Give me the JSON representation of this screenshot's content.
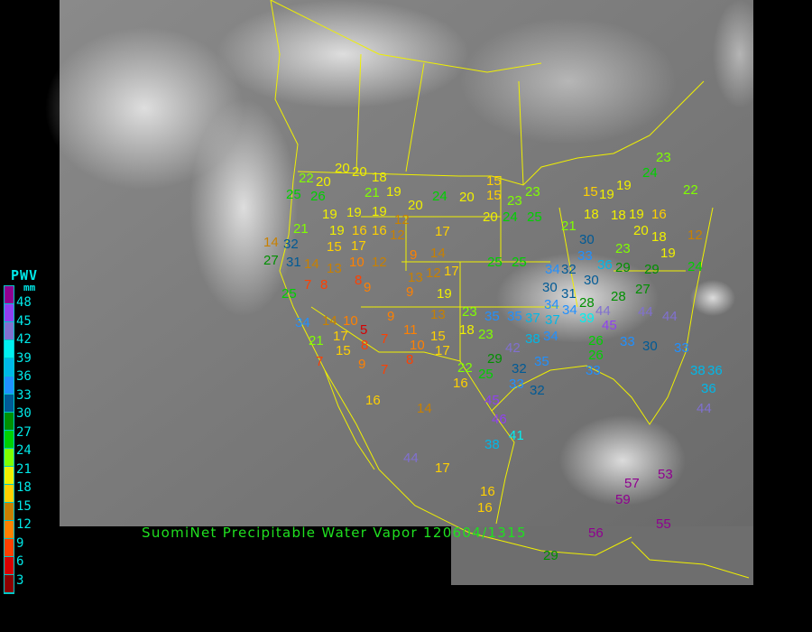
{
  "title": "SuomiNet Precipitable Water Vapor 120604/1315",
  "legend": {
    "title": "PWV",
    "unit": "mm",
    "labels": [
      "48",
      "45",
      "42",
      "39",
      "36",
      "33",
      "30",
      "27",
      "24",
      "21",
      "18",
      "15",
      "12",
      "9",
      "6",
      "3"
    ],
    "colors_top_to_bottom": [
      "#900090",
      "#9040f0",
      "#8070d0",
      "#00f0f0",
      "#00b8e8",
      "#2090ff",
      "#005a96",
      "#009000",
      "#00d000",
      "#80ff00",
      "#f0f000",
      "#ffd000",
      "#c88000",
      "#ff8000",
      "#ff4000",
      "#d80000",
      "#8b0000"
    ]
  },
  "colors": {
    "border_lines": "#f0f000",
    "title_text": "#20e020",
    "legend_text": "#00e8e8"
  },
  "stations": [
    20,
    20,
    18,
    22,
    20,
    25,
    26,
    21,
    19,
    20,
    24,
    20,
    15,
    15,
    20,
    24,
    25,
    23,
    23,
    19,
    19,
    19,
    12,
    19,
    16,
    16,
    12,
    17,
    21,
    14,
    32,
    15,
    17,
    9,
    14,
    31,
    14,
    13,
    10,
    12,
    27,
    8,
    9,
    13,
    12,
    17,
    9,
    19,
    7,
    8,
    25,
    25,
    25,
    34,
    14,
    10,
    5,
    9,
    11,
    13,
    23,
    35,
    35,
    37,
    34,
    39,
    44,
    45,
    44,
    44,
    21,
    17,
    15,
    8,
    7,
    10,
    15,
    17,
    18,
    23,
    42,
    38,
    34,
    7,
    9,
    7,
    8,
    22,
    25,
    29,
    32,
    35,
    33,
    16,
    32,
    45,
    46,
    41,
    38,
    16,
    14,
    44,
    17,
    16,
    16,
    57,
    59,
    53,
    55,
    56,
    29,
    21,
    18,
    15,
    19,
    19,
    18,
    20,
    16,
    19,
    18,
    19,
    23,
    30,
    33,
    36,
    29,
    29,
    32,
    34,
    30,
    31,
    30,
    28,
    27,
    23,
    24,
    22,
    12,
    24,
    33,
    38,
    36,
    36,
    44,
    26,
    26,
    33,
    30,
    33,
    37,
    34,
    28
  ]
}
